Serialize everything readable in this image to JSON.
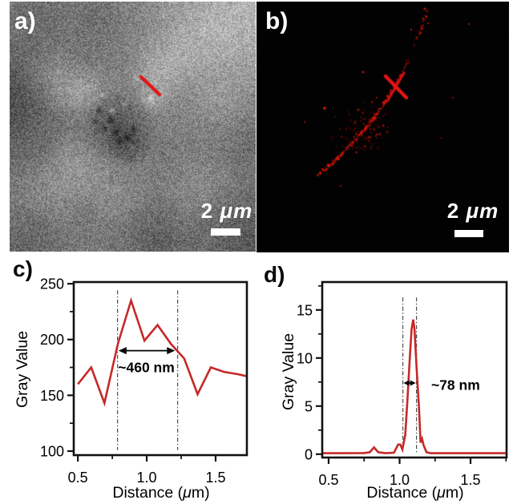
{
  "figure_background": "#ffffff",
  "colors": {
    "curve_red": "#c62828",
    "marker_red": "#e41414",
    "axis_black": "#111111",
    "guide_gray": "#4d4d4d",
    "scalebar_white": "#ffffff",
    "image_b_background": "#020202"
  },
  "panels": {
    "a": {
      "label": "a)",
      "scalebar": {
        "value": "2",
        "unit": "μm"
      }
    },
    "b": {
      "label": "b)",
      "scalebar": {
        "value": "2",
        "unit": "μm"
      }
    },
    "c": {
      "label": "c)"
    },
    "d": {
      "label": "d)"
    }
  },
  "chart_data": [
    {
      "id": "c",
      "type": "line",
      "title": "",
      "xlabel": "Distance (μm)",
      "ylabel": "Gray Value",
      "xlim": [
        0.47,
        1.727
      ],
      "ylim": [
        96.4,
        251.5
      ],
      "xticks": [
        0.5,
        1.0,
        1.5
      ],
      "xtick_labels": [
        "0.5",
        "1.0",
        "1.5"
      ],
      "xminor": [
        0.75,
        1.25,
        1.75
      ],
      "yticks": [
        100,
        150,
        200,
        250
      ],
      "ytick_labels": [
        "100",
        "150",
        "200",
        "250"
      ],
      "yminor": [
        125,
        175,
        225
      ],
      "grid": false,
      "series": [
        {
          "name": "gray-value-profile",
          "color": "#c62828",
          "points": [
            [
              0.5,
              160
            ],
            [
              0.597,
              175
            ],
            [
              0.693,
              143
            ],
            [
              0.79,
              196
            ],
            [
              0.886,
              235
            ],
            [
              0.983,
              199
            ],
            [
              1.079,
              213
            ],
            [
              1.176,
              196
            ],
            [
              1.272,
              183
            ],
            [
              1.369,
              151
            ],
            [
              1.465,
              175
            ],
            [
              1.561,
              171
            ],
            [
              1.658,
              169
            ],
            [
              1.73,
              167
            ]
          ]
        }
      ],
      "annotation": {
        "label": "~460 nm",
        "dash_x": [
          0.788,
          1.224
        ],
        "dash_y": [
          101,
          244
        ],
        "arrow": {
          "x1": 0.795,
          "x2": 1.205,
          "y": 190
        },
        "label_pos": {
          "x": 0.997,
          "y": 175,
          "anchor": "middle"
        }
      }
    },
    {
      "id": "d",
      "type": "line",
      "title": "",
      "xlabel": "Distance (μm)",
      "ylabel": "Gray Value",
      "xlim": [
        0.455,
        1.754
      ],
      "ylim": [
        -0.35,
        17.9
      ],
      "xticks": [
        0.5,
        1.0,
        1.5
      ],
      "xtick_labels": [
        "0.5",
        "1.0",
        "1.5"
      ],
      "xminor": [
        0.75,
        1.25,
        1.75
      ],
      "yticks": [
        0,
        5,
        10,
        15
      ],
      "ytick_labels": [
        "0",
        "5",
        "10",
        "15"
      ],
      "yminor": [
        2.5,
        7.5,
        12.5,
        17.5
      ],
      "grid": false,
      "series": [
        {
          "name": "gray-value-profile",
          "color": "#c62828",
          "points": [
            [
              0.455,
              0.1
            ],
            [
              0.6,
              0.1
            ],
            [
              0.75,
              0.12
            ],
            [
              0.79,
              0.2
            ],
            [
              0.82,
              0.7
            ],
            [
              0.85,
              0.2
            ],
            [
              0.9,
              0.1
            ],
            [
              0.96,
              0.15
            ],
            [
              0.99,
              1.0
            ],
            [
              1.005,
              1.0
            ],
            [
              1.02,
              0.5
            ],
            [
              1.04,
              2.0
            ],
            [
              1.055,
              5.5
            ],
            [
              1.07,
              9.5
            ],
            [
              1.085,
              13.0
            ],
            [
              1.096,
              14.0
            ],
            [
              1.105,
              13.0
            ],
            [
              1.12,
              9.0
            ],
            [
              1.136,
              5.0
            ],
            [
              1.148,
              1.2
            ],
            [
              1.158,
              1.6
            ],
            [
              1.17,
              0.9
            ],
            [
              1.19,
              0.2
            ],
            [
              1.22,
              0.1
            ],
            [
              1.4,
              0.1
            ],
            [
              1.6,
              0.1
            ],
            [
              1.754,
              0.1
            ]
          ]
        }
      ],
      "annotation": {
        "label": "~78 nm",
        "dash_x": [
          1.023,
          1.119
        ],
        "dash_y": [
          0.2,
          16.3
        ],
        "arrow": {
          "x1": 1.028,
          "x2": 1.114,
          "y": 7.4
        },
        "label_pos": {
          "x": 1.223,
          "y": 7.2,
          "anchor": "start"
        }
      }
    }
  ]
}
